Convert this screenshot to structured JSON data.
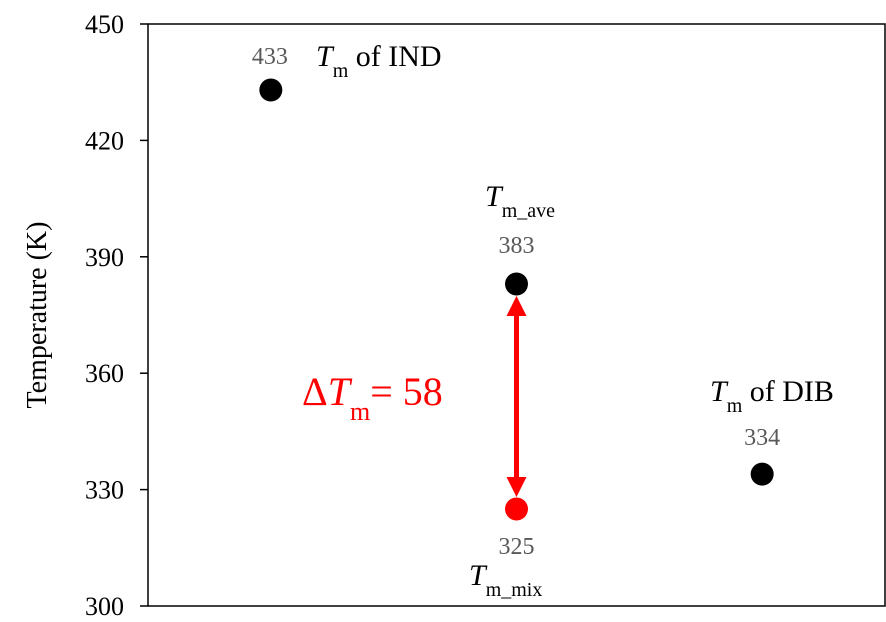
{
  "chart_data": {
    "type": "scatter",
    "ylabel": "Temperature (K)",
    "ylim": [
      300,
      450
    ],
    "yticks": [
      300,
      330,
      360,
      390,
      420,
      450
    ],
    "grid": false,
    "legend": "none",
    "points": [
      {
        "x": 1,
        "y": 433,
        "label": "433",
        "color": "#000000"
      },
      {
        "x": 2,
        "y": 383,
        "label": "383",
        "color": "#000000"
      },
      {
        "x": 2,
        "y": 325,
        "label": "325",
        "color": "#ff0000"
      },
      {
        "x": 3,
        "y": 334,
        "label": "334",
        "color": "#000000"
      }
    ],
    "annotations": {
      "tm_ind": {
        "main": "T",
        "sub": "m",
        "suffix": " of IND"
      },
      "tm_ave": {
        "main": "T",
        "sub": "m_ave"
      },
      "tm_dib": {
        "main": "T",
        "sub": "m",
        "suffix": " of DIB"
      },
      "tm_mix": {
        "main": "T",
        "sub": "m_mix"
      },
      "delta": {
        "prefix": "Δ",
        "main": "T",
        "sub": "m",
        "suffix": "= 58",
        "color": "#ff0000"
      }
    },
    "arrow": {
      "from": 383,
      "to": 325,
      "x": 2,
      "color": "#ff0000"
    }
  }
}
